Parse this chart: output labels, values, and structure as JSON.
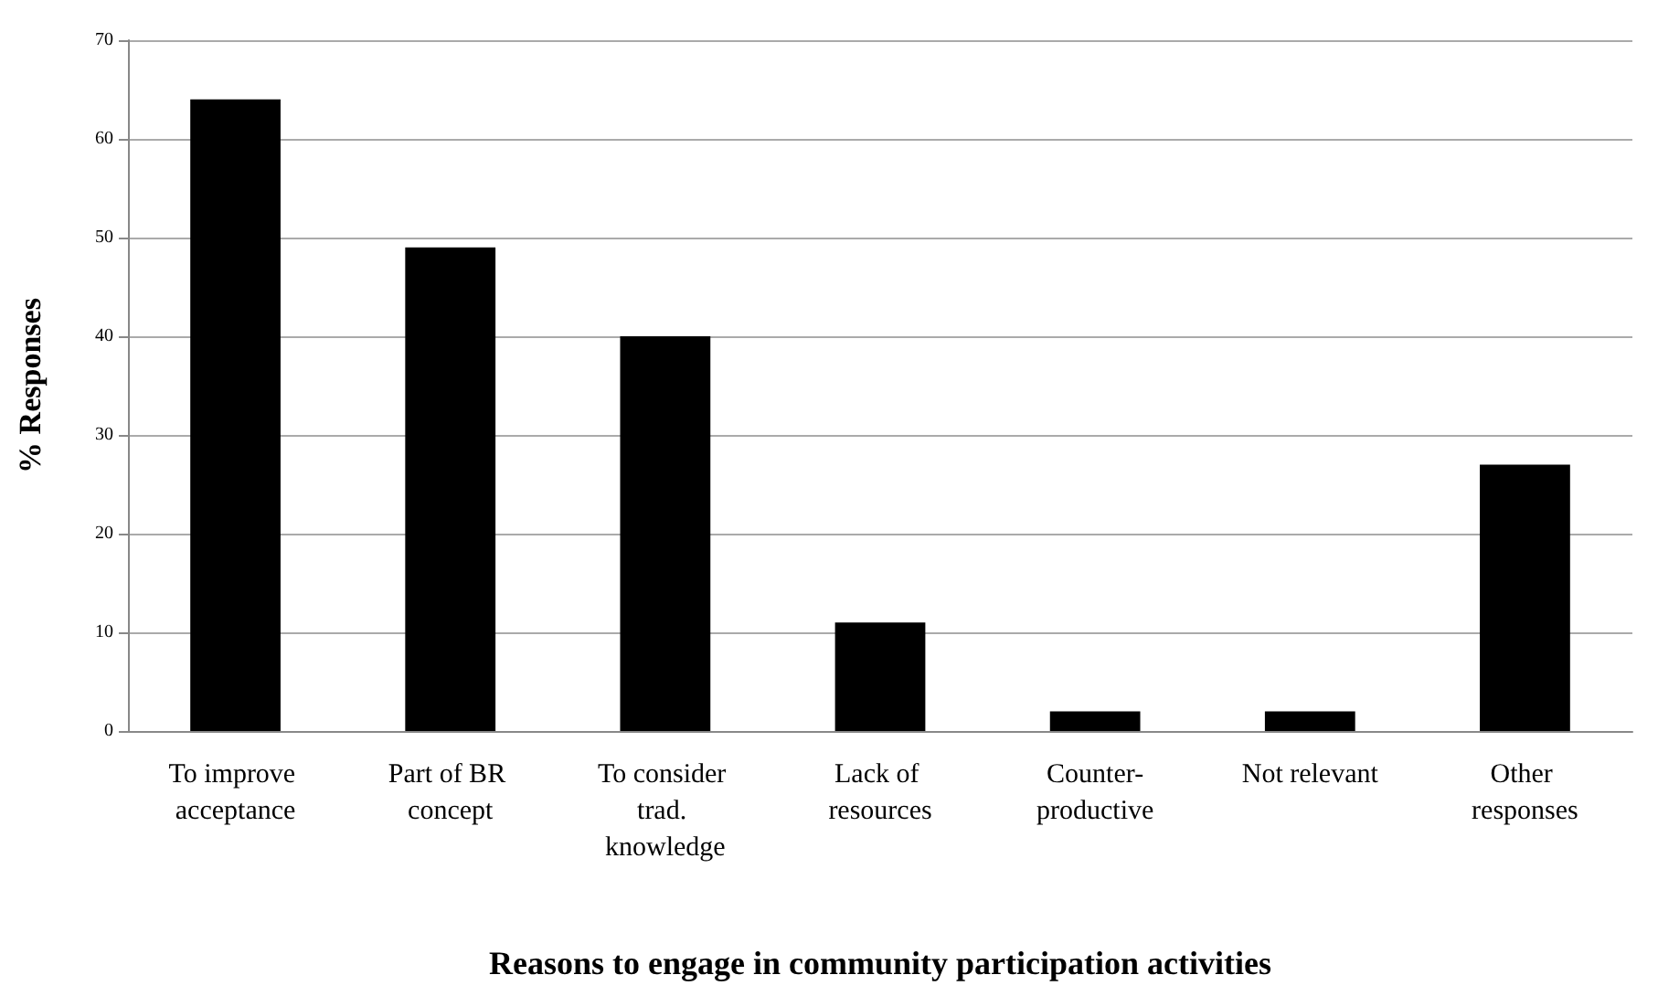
{
  "chart_data": {
    "type": "bar",
    "xlabel": "Reasons to engage in community participation activities",
    "ylabel": "% Responses",
    "categories": [
      "To improve acceptance",
      "Part of BR concept",
      "To consider trad. knowledge",
      "Lack of resources",
      "Counter-productive",
      "Not relevant",
      "Other responses"
    ],
    "values": [
      64,
      49,
      40,
      11,
      2,
      2,
      27
    ],
    "color": "#000000",
    "ylim": [
      0,
      70
    ],
    "yticks": [
      0,
      10,
      20,
      30,
      40,
      50,
      60,
      70
    ],
    "grid": "y"
  }
}
